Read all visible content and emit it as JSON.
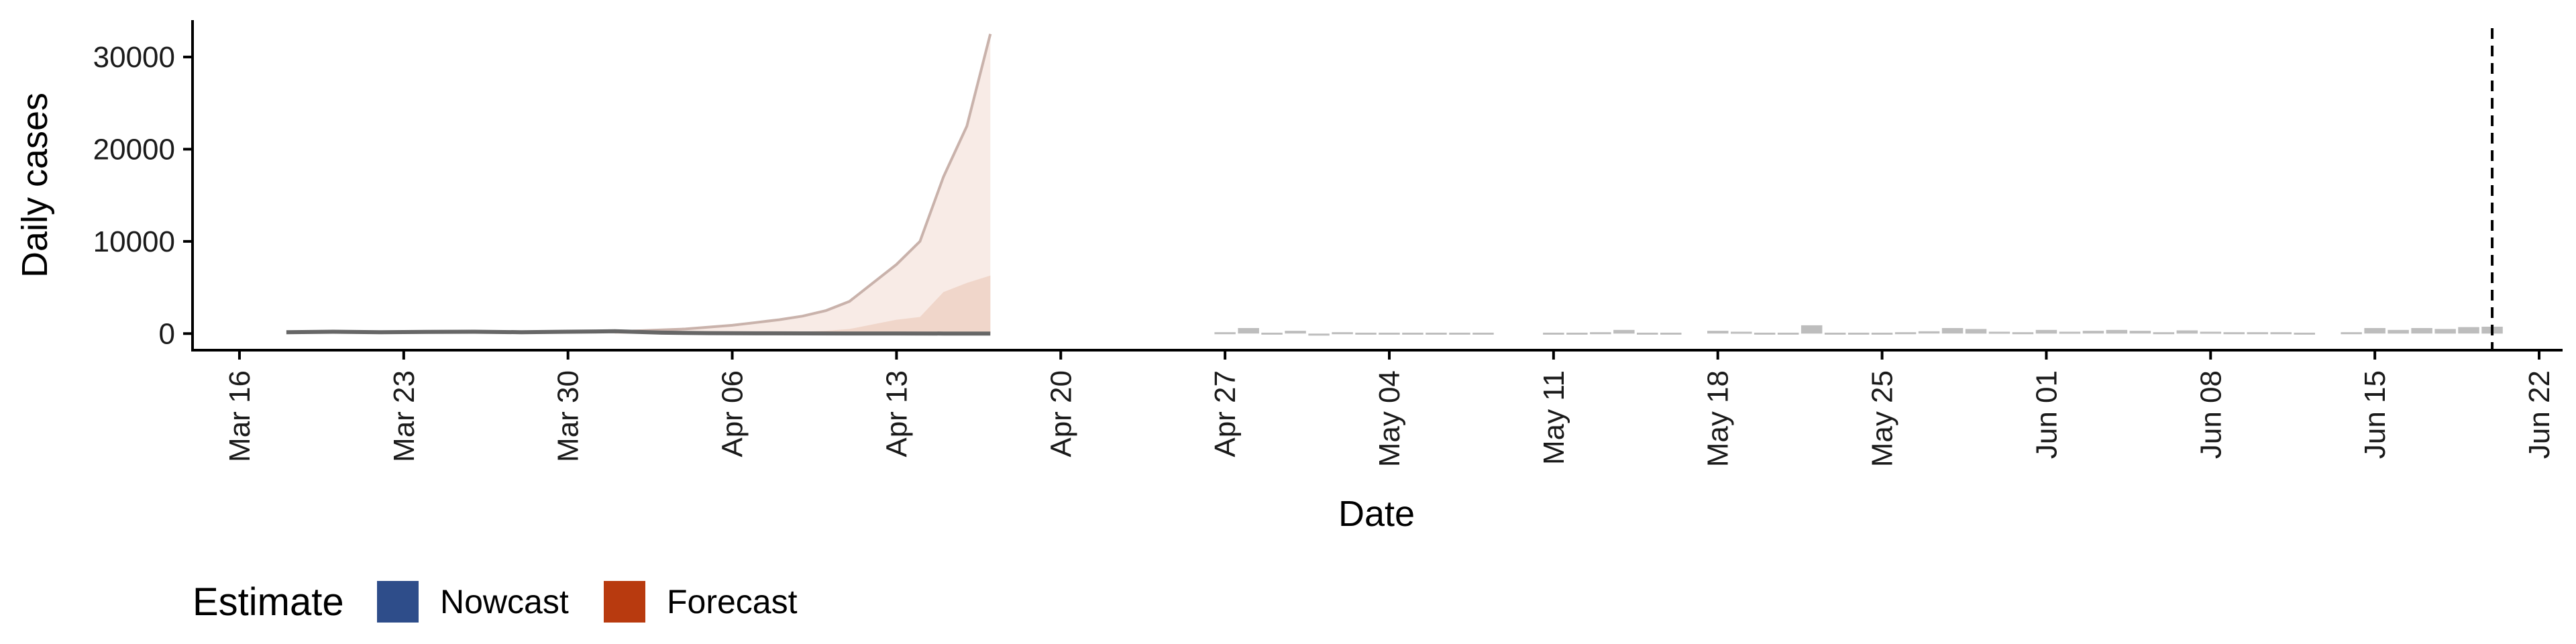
{
  "chart_data": {
    "type": "area",
    "xlabel": "Date",
    "ylabel": "Daily cases",
    "x_range": [
      "2020-03-14",
      "2020-06-23"
    ],
    "ylim": [
      -1800,
      34000
    ],
    "y_ticks": [
      0,
      10000,
      20000,
      30000
    ],
    "x_ticks": [
      "2020-03-16",
      "2020-03-23",
      "2020-03-30",
      "2020-04-06",
      "2020-04-13",
      "2020-04-20",
      "2020-04-27",
      "2020-05-04",
      "2020-05-11",
      "2020-05-18",
      "2020-05-25",
      "2020-06-01",
      "2020-06-08",
      "2020-06-15",
      "2020-06-22"
    ],
    "x_tick_labels": [
      "Mar 16",
      "Mar 23",
      "Mar 30",
      "Apr 06",
      "Apr 13",
      "Apr 20",
      "Apr 27",
      "May 04",
      "May 11",
      "May 18",
      "May 25",
      "Jun 01",
      "Jun 08",
      "Jun 15",
      "Jun 22"
    ],
    "grid": false,
    "legend_placement": "bottom-left",
    "legend": {
      "title": "Estimate",
      "entries": [
        {
          "label": "Nowcast",
          "color": "#2e4d8a"
        },
        {
          "label": "Forecast",
          "color": "#b83a0f"
        }
      ]
    },
    "reference_line_date": "2020-06-20",
    "forecast_interval": {
      "dates": [
        "2020-04-01",
        "2020-04-02",
        "2020-04-03",
        "2020-04-04",
        "2020-04-05",
        "2020-04-06",
        "2020-04-07",
        "2020-04-08",
        "2020-04-09",
        "2020-04-10",
        "2020-04-11",
        "2020-04-12",
        "2020-04-13",
        "2020-04-14",
        "2020-04-15",
        "2020-04-16",
        "2020-04-17"
      ],
      "upper_outer": [
        200,
        300,
        400,
        500,
        700,
        900,
        1200,
        1500,
        1900,
        2500,
        3500,
        5500,
        7500,
        10000,
        17000,
        22500,
        32500
      ],
      "lower_outer": [
        0,
        0,
        0,
        0,
        0,
        0,
        0,
        0,
        0,
        0,
        0,
        0,
        0,
        0,
        0,
        0,
        0
      ],
      "upper_inner": [
        20,
        30,
        40,
        50,
        60,
        80,
        100,
        150,
        200,
        300,
        500,
        1000,
        1500,
        1800,
        4500,
        5500,
        6300
      ],
      "lower_inner": [
        0,
        0,
        0,
        0,
        0,
        0,
        0,
        0,
        0,
        0,
        0,
        0,
        0,
        0,
        0,
        0,
        0
      ]
    },
    "nowcast_line": {
      "dates": [
        "2020-03-18",
        "2020-03-20",
        "2020-03-22",
        "2020-03-24",
        "2020-03-26",
        "2020-03-28",
        "2020-03-30",
        "2020-04-01",
        "2020-04-03",
        "2020-04-05",
        "2020-04-07",
        "2020-04-09",
        "2020-04-11",
        "2020-04-13",
        "2020-04-15",
        "2020-04-17"
      ],
      "values": [
        150,
        200,
        150,
        180,
        200,
        150,
        200,
        250,
        100,
        50,
        30,
        20,
        10,
        10,
        5,
        5
      ]
    },
    "reported_cases": {
      "dates": [
        "2020-04-27",
        "2020-04-28",
        "2020-04-29",
        "2020-04-30",
        "2020-05-01",
        "2020-05-02",
        "2020-05-03",
        "2020-05-04",
        "2020-05-05",
        "2020-05-06",
        "2020-05-07",
        "2020-05-08",
        "2020-05-11",
        "2020-05-12",
        "2020-05-13",
        "2020-05-14",
        "2020-05-15",
        "2020-05-16",
        "2020-05-18",
        "2020-05-19",
        "2020-05-20",
        "2020-05-21",
        "2020-05-22",
        "2020-05-23",
        "2020-05-24",
        "2020-05-25",
        "2020-05-26",
        "2020-05-27",
        "2020-05-28",
        "2020-05-29",
        "2020-05-30",
        "2020-05-31",
        "2020-06-01",
        "2020-06-02",
        "2020-06-03",
        "2020-06-04",
        "2020-06-05",
        "2020-06-06",
        "2020-06-07",
        "2020-06-08",
        "2020-06-09",
        "2020-06-10",
        "2020-06-11",
        "2020-06-12",
        "2020-06-14",
        "2020-06-15",
        "2020-06-16",
        "2020-06-17",
        "2020-06-18",
        "2020-06-19",
        "2020-06-20"
      ],
      "values": [
        150,
        600,
        100,
        300,
        -200,
        150,
        100,
        100,
        100,
        100,
        100,
        100,
        100,
        100,
        150,
        400,
        100,
        100,
        300,
        200,
        100,
        100,
        900,
        100,
        100,
        100,
        150,
        250,
        600,
        500,
        200,
        150,
        400,
        200,
        300,
        400,
        300,
        150,
        350,
        200,
        150,
        150,
        150,
        100,
        150,
        600,
        400,
        600,
        500,
        700,
        750
      ]
    },
    "colors": {
      "forecast_outer": "#f8ebe6",
      "forecast_inner": "#f0d6ca",
      "forecast_line": "#c9b2ab",
      "nowcast_line": "#666666",
      "reported_bars": "#bdbdbd",
      "reference_line": "#000000"
    }
  }
}
